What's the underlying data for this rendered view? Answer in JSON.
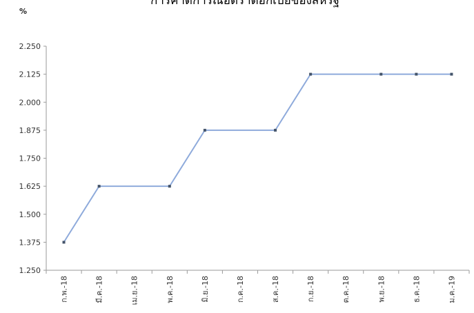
{
  "chart_data": {
    "type": "line",
    "title": "การคาดการณ์อัตราดอกเบี้ยของสหรัฐ",
    "ylabel": "%",
    "xlabel": "",
    "ylim": [
      1.25,
      2.25
    ],
    "yticks": [
      "2.250",
      "2.125",
      "2.000",
      "1.875",
      "1.750",
      "1.625",
      "1.500",
      "1.375",
      "1.250"
    ],
    "yticks_values": [
      2.25,
      2.125,
      2.0,
      1.875,
      1.75,
      1.625,
      1.5,
      1.375,
      1.25
    ],
    "categories": [
      "ก.พ.-18",
      "มี.ค.-18",
      "เม.ย.-18",
      "พ.ค.-18",
      "มิ.ย.-18",
      "ก.ค.-18",
      "ส.ค.-18",
      "ก.ย.-18",
      "ต.ค.-18",
      "พ.ย.-18",
      "ธ.ค.-18",
      "ม.ค.-19"
    ],
    "series": [
      {
        "values": [
          1.375,
          1.625,
          null,
          1.625,
          1.875,
          null,
          1.875,
          2.125,
          null,
          2.125,
          2.125,
          2.125
        ],
        "color": "#8eaadb",
        "marker_color": "#44546a"
      }
    ],
    "grid": false,
    "legend": "none"
  }
}
